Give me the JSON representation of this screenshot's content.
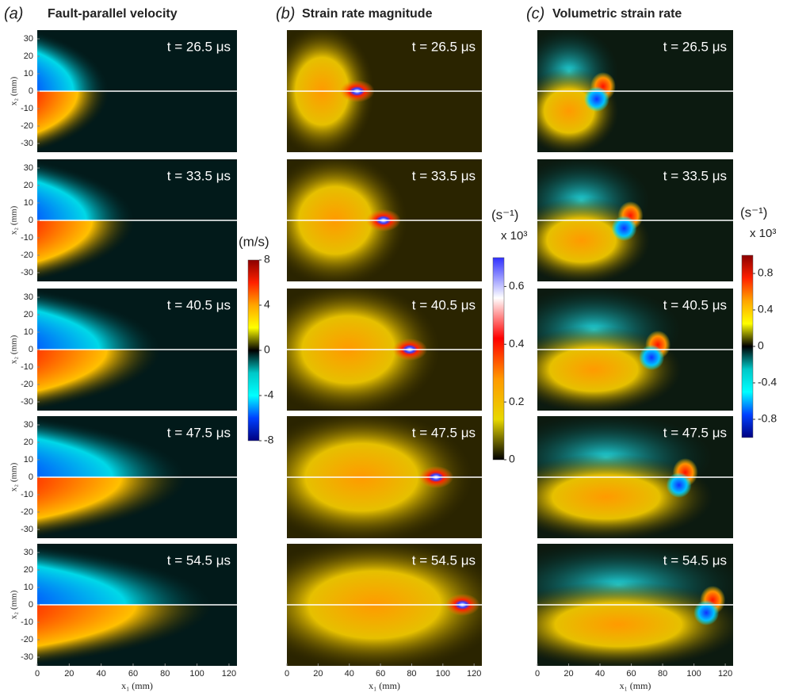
{
  "chart_data": [
    {
      "type": "heatmap",
      "panel_label": "(a)",
      "title": "Fault-parallel velocity",
      "field": "velocity",
      "time_labels": [
        "t = 26.5 μs",
        "t = 33.5 μs",
        "t = 40.5 μs",
        "t = 47.5 μs",
        "t = 54.5 μs"
      ],
      "xlabel": "x₁ (mm)",
      "ylabel": "x₂ (mm)",
      "xlim": [
        0,
        125
      ],
      "xticks": [
        0,
        20,
        40,
        60,
        80,
        100,
        120
      ],
      "ylim": [
        -35,
        35
      ],
      "yticks": [
        -30,
        -20,
        -10,
        0,
        10,
        20,
        30
      ],
      "colorbar": {
        "label": "(m/s)",
        "lim": [
          -8,
          8
        ],
        "ticks": [
          8,
          4,
          0,
          -4,
          -8
        ],
        "colors": [
          "#8b0000",
          "#ff2000",
          "#ffa500",
          "#ffff00",
          "#000000",
          "#00c8c8",
          "#00ffff",
          "#0040ff",
          "#000080"
        ]
      }
    },
    {
      "type": "heatmap",
      "panel_label": "(b)",
      "title": "Strain rate magnitude",
      "field": "strain",
      "time_labels": [
        "t = 26.5 μs",
        "t = 33.5 μs",
        "t = 40.5 μs",
        "t = 47.5 μs",
        "t = 54.5 μs"
      ],
      "xlabel": "x₁ (mm)",
      "xlim": [
        0,
        125
      ],
      "xticks": [
        0,
        20,
        40,
        60,
        80,
        100,
        120
      ],
      "ylim": [
        -35,
        35
      ],
      "colorbar": {
        "label": "(s⁻¹)",
        "exponent": "x 10³",
        "lim": [
          0,
          0.7
        ],
        "ticks": [
          0,
          0.2,
          0.4,
          0.6
        ],
        "colors": [
          "#3030ff",
          "#ffffff",
          "#ff0000",
          "#ff9900",
          "#e8d800",
          "#000000"
        ]
      }
    },
    {
      "type": "heatmap",
      "panel_label": "(c)",
      "title": "Volumetric strain rate",
      "field": "volumetric",
      "time_labels": [
        "t = 26.5 μs",
        "t = 33.5 μs",
        "t = 40.5 μs",
        "t = 47.5 μs",
        "t = 54.5 μs"
      ],
      "xlabel": "x₁ (mm)",
      "xlim": [
        0,
        125
      ],
      "xticks": [
        0,
        20,
        40,
        60,
        80,
        100,
        120
      ],
      "ylim": [
        -35,
        35
      ],
      "colorbar": {
        "label": "(s⁻¹)",
        "exponent": "x 10³",
        "lim": [
          -1,
          1
        ],
        "ticks": [
          0.8,
          0.4,
          0,
          -0.4,
          -0.8
        ],
        "colors": [
          "#8b0000",
          "#ff2000",
          "#ffa500",
          "#ffff00",
          "#000000",
          "#00c8c8",
          "#00ffff",
          "#0040ff",
          "#000080"
        ]
      }
    }
  ]
}
